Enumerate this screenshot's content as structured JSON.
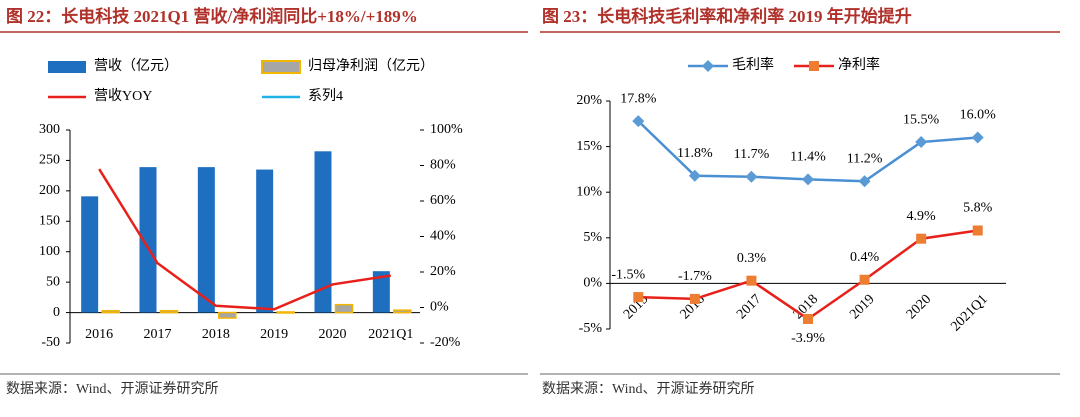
{
  "chart_data": [
    {
      "type": "bar",
      "title": "图 22：长电科技 2021Q1 营收/净利润同比+18%/+189%",
      "source": "数据来源：Wind、开源证券研究所",
      "categories": [
        "2016",
        "2017",
        "2018",
        "2019",
        "2020",
        "2021Q1"
      ],
      "series": [
        {
          "name": "营收（亿元）",
          "color": "#1f6fc1",
          "type": "bar",
          "values": [
            191,
            239,
            239,
            235,
            265,
            68
          ]
        },
        {
          "name": "归母净利润（亿元）",
          "color": "#a6a6a6",
          "border": "#f2b500",
          "type": "bar",
          "values": [
            3,
            3,
            -9,
            1,
            13,
            4
          ]
        },
        {
          "name": "营收YOY",
          "color": "#e8201a",
          "type": "line",
          "axis": "y2",
          "values": [
            78,
            25,
            1,
            -1,
            13,
            18
          ]
        },
        {
          "name": "系列4",
          "color": "#1eb4e8",
          "type": "line",
          "axis": "y2",
          "values": [
            null,
            null,
            null,
            null,
            null,
            null
          ]
        }
      ],
      "ylim": [
        -50,
        300
      ],
      "yticks": [
        -50,
        0,
        50,
        100,
        150,
        200,
        250,
        300
      ],
      "y2lim": [
        -20,
        100
      ],
      "y2ticks": [
        {
          "value": -20,
          "label": "-20%"
        },
        {
          "value": 0,
          "label": "0%"
        },
        {
          "value": 20,
          "label": "20%"
        },
        {
          "value": 40,
          "label": "40%"
        },
        {
          "value": 60,
          "label": "60%"
        },
        {
          "value": 80,
          "label": "80%"
        },
        {
          "value": 100,
          "label": "100%"
        }
      ],
      "grid": false
    },
    {
      "type": "line",
      "title": "图 23：长电科技毛利率和净利率 2019 年开始提升",
      "source": "数据来源：Wind、开源证券研究所",
      "categories": [
        "2015",
        "2016",
        "2017",
        "2018",
        "2019",
        "2020",
        "2021Q1"
      ],
      "series": [
        {
          "name": "毛利率",
          "color": "#4a8fd4",
          "marker_color": "#5b9bd5",
          "marker": "diamond",
          "values": [
            17.8,
            11.8,
            11.7,
            11.4,
            11.2,
            15.5,
            16.0
          ],
          "value_labels": [
            "17.8%",
            "11.8%",
            "11.7%",
            "11.4%",
            "11.2%",
            "15.5%",
            "16.0%"
          ]
        },
        {
          "name": "净利率",
          "color": "#e8201a",
          "marker_color": "#ed7d31",
          "marker": "square",
          "values": [
            -1.5,
            -1.7,
            0.3,
            -3.9,
            0.4,
            4.9,
            5.8
          ],
          "value_labels": [
            "-1.5%",
            "-1.7%",
            "0.3%",
            "-3.9%",
            "0.4%",
            "4.9%",
            "5.8%"
          ]
        }
      ],
      "ylim": [
        -5,
        20
      ],
      "yticks": [
        {
          "value": -5,
          "label": "-5%"
        },
        {
          "value": 0,
          "label": "0%"
        },
        {
          "value": 5,
          "label": "5%"
        },
        {
          "value": 10,
          "label": "10%"
        },
        {
          "value": 15,
          "label": "15%"
        },
        {
          "value": 20,
          "label": "20%"
        }
      ],
      "grid": false
    }
  ]
}
